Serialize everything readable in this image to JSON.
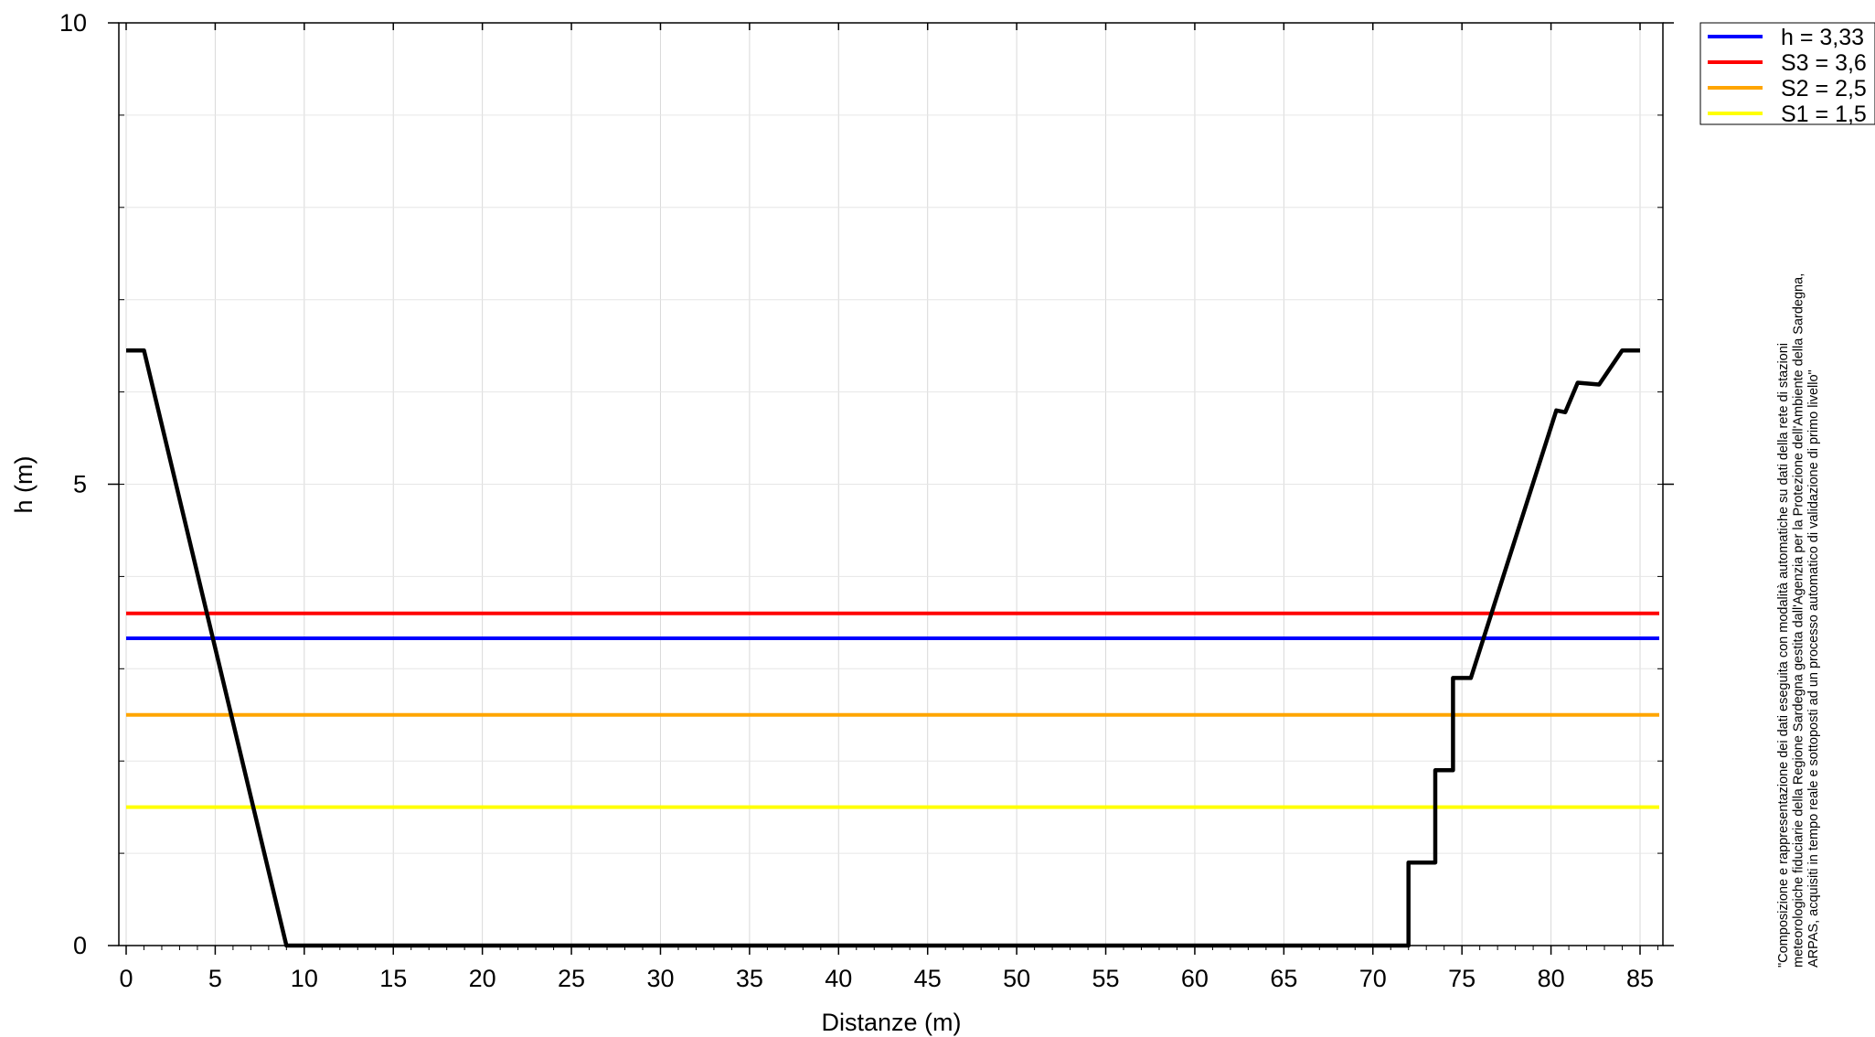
{
  "chart_data": {
    "type": "line",
    "xlabel": "Distanze (m)",
    "ylabel": "h (m)",
    "xlim": [
      0,
      86
    ],
    "ylim": [
      0,
      10
    ],
    "x_ticks": [
      0,
      5,
      10,
      15,
      20,
      25,
      30,
      35,
      40,
      45,
      50,
      55,
      60,
      65,
      70,
      75,
      80,
      85
    ],
    "y_ticks": [
      0,
      5,
      10
    ],
    "grid": true,
    "legend_position": "top-right, outside plot",
    "profile": {
      "color": "#000000",
      "points": [
        [
          0,
          6.45
        ],
        [
          1,
          6.45
        ],
        [
          9,
          0
        ],
        [
          72,
          0
        ],
        [
          72,
          0.9
        ],
        [
          73.5,
          0.9
        ],
        [
          73.5,
          1.9
        ],
        [
          74.5,
          1.9
        ],
        [
          74.5,
          2.9
        ],
        [
          75.5,
          2.9
        ],
        [
          80.3,
          5.8
        ],
        [
          80.8,
          5.78
        ],
        [
          81.5,
          6.1
        ],
        [
          82.7,
          6.08
        ],
        [
          84,
          6.45
        ],
        [
          85,
          6.45
        ]
      ]
    },
    "levels": [
      {
        "name": "h = 3,33",
        "value": 3.33,
        "color": "#0000ff"
      },
      {
        "name": "S3 = 3,6",
        "value": 3.6,
        "color": "#ff0000"
      },
      {
        "name": "S2 = 2,5",
        "value": 2.5,
        "color": "#ffa500"
      },
      {
        "name": "S1 = 1,5",
        "value": 1.5,
        "color": "#ffff00"
      }
    ],
    "note": [
      "\"Composizione e rappresentazione dei dati eseguita con modalità automatiche su dati della rete di stazioni",
      "meteorologiche fiduciarie della Regione Sardegna gestita dall'Agenzia per la Protezione dell'Ambiente della Sardegna,",
      "ARPAS, acquisiti in tempo reale e sottoposti ad un processo automatico di validazione di primo livello\""
    ]
  }
}
